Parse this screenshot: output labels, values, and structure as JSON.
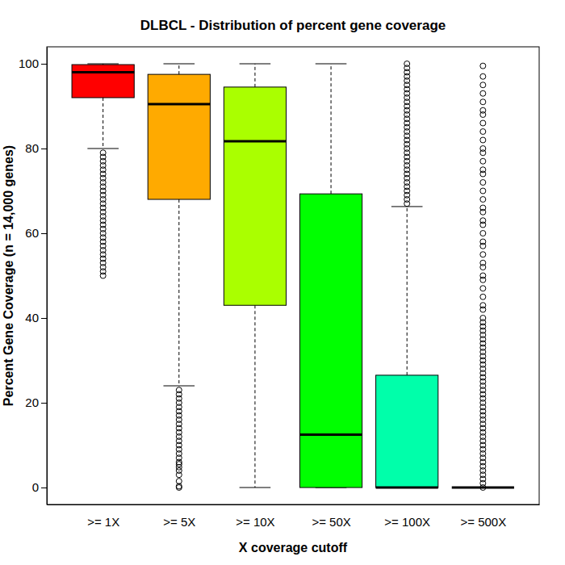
{
  "chart_data": {
    "type": "box",
    "title": "DLBCL - Distribution of percent gene coverage",
    "x_label": "X coverage cutoff",
    "y_label": "Percent Gene Coverage (n = 14,000 genes)",
    "categories": [
      ">= 1X",
      ">= 5X",
      ">= 10X",
      ">= 50X",
      ">= 100X",
      ">= 500X"
    ],
    "colors": [
      "#FF0000",
      "#FFAA00",
      "#AAFF00",
      "#00FF00",
      "#00FFAA",
      "#00AAFF"
    ],
    "ylim": [
      -4,
      104
    ],
    "yticks": [
      0,
      20,
      40,
      60,
      80,
      100
    ],
    "boxes": [
      {
        "whisker_low": 80,
        "q1": 92,
        "median": 98,
        "q3": 99.8,
        "whisker_high": 100,
        "outliers": [
          50,
          51,
          52,
          53,
          54,
          55,
          56,
          57,
          58,
          59,
          60,
          61,
          62,
          63,
          64,
          65,
          66,
          67,
          68,
          69,
          70,
          71,
          72,
          73,
          74,
          75,
          76,
          77,
          78,
          79
        ]
      },
      {
        "whisker_low": 24,
        "q1": 68,
        "median": 90.5,
        "q3": 97.5,
        "whisker_high": 100,
        "outliers": [
          0,
          0.3,
          1.5,
          3,
          4,
          4.8,
          5.5,
          6,
          7,
          8,
          9,
          10,
          11,
          12,
          13,
          14,
          15,
          16,
          17,
          18,
          19,
          20,
          21,
          22,
          23
        ]
      },
      {
        "whisker_low": 0,
        "q1": 43,
        "median": 81.7,
        "q3": 94.5,
        "whisker_high": 100,
        "outliers": []
      },
      {
        "whisker_low": 0,
        "q1": 0,
        "median": 12.5,
        "q3": 69.3,
        "whisker_high": 100,
        "outliers": []
      },
      {
        "whisker_low": 0,
        "q1": 0,
        "median": 0,
        "q3": 26.5,
        "whisker_high": 66.3,
        "outliers": [
          67,
          68,
          69,
          70,
          71,
          72,
          73,
          74,
          75,
          76,
          77,
          78,
          79,
          80,
          81,
          82,
          83,
          84,
          85,
          86,
          87,
          88,
          89,
          90,
          91,
          92,
          93,
          94,
          95,
          96,
          97,
          98,
          99,
          100
        ]
      },
      {
        "whisker_low": 0,
        "q1": 0,
        "median": 0,
        "q3": 0,
        "whisker_high": 0,
        "outliers": [
          0,
          1,
          2,
          3,
          4,
          5,
          6,
          7,
          8,
          9,
          10,
          11,
          12,
          13,
          14,
          15,
          16,
          17,
          18,
          19,
          20,
          21,
          22,
          23,
          24,
          25,
          26,
          27,
          28,
          29,
          30,
          31,
          32,
          33,
          34,
          35,
          36,
          37,
          38,
          39,
          40,
          42,
          43,
          45,
          47,
          49,
          50,
          52,
          53,
          55,
          57,
          58,
          60,
          62,
          63,
          65,
          66,
          68,
          70,
          72,
          74,
          75,
          77,
          79,
          80,
          82,
          84,
          86,
          88,
          89,
          91,
          93,
          95,
          97,
          99.5
        ]
      }
    ]
  }
}
